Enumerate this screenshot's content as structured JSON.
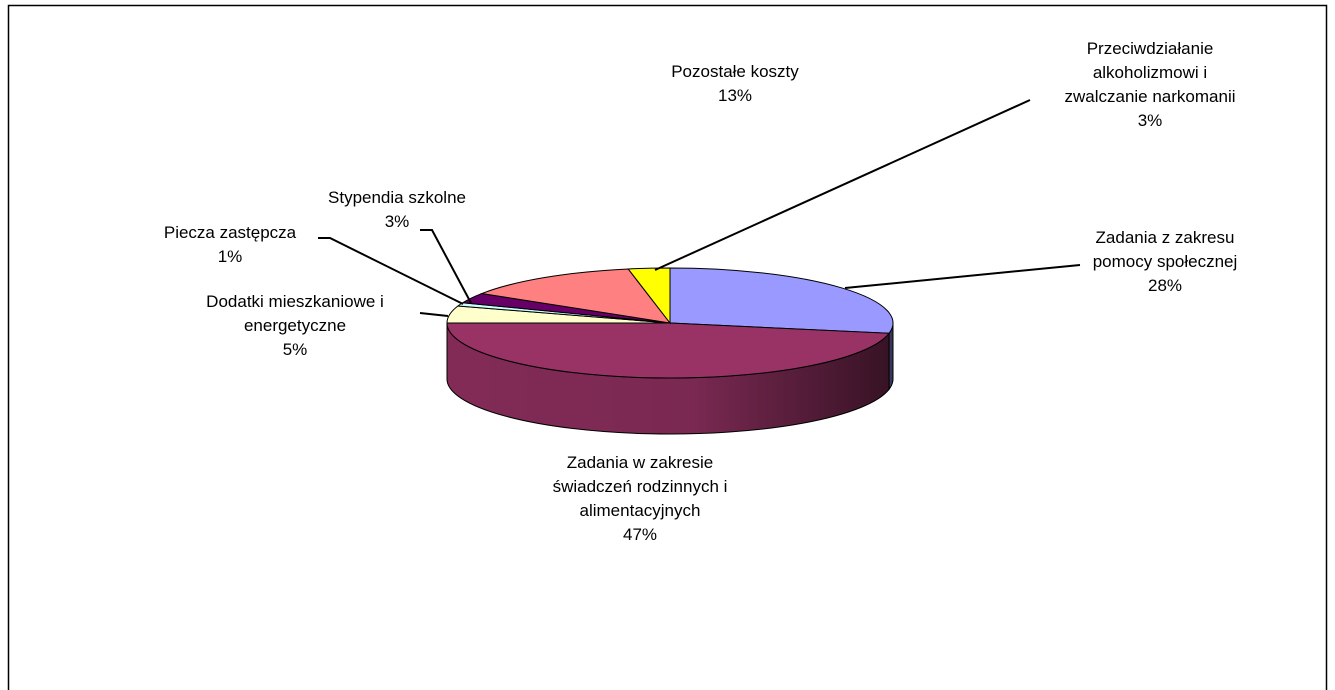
{
  "chart_data": {
    "type": "pie",
    "categories": [
      "Zadania z zakresu pomocy społecznej",
      "Zadania w zakresie świadczeń rodzinnych i alimentacyjnych",
      "Dodatki mieszkaniowe i energetyczne",
      "Piecza zastępcza",
      "Stypendia szkolne",
      "Pozostałe koszty",
      "Przeciwdziałanie alkoholizmowi i zwalczanie narkomanii"
    ],
    "values": [
      28,
      47,
      5,
      1,
      3,
      13,
      3
    ],
    "value_labels": [
      "28%",
      "47%",
      "5%",
      "1%",
      "3%",
      "13%",
      "3%"
    ],
    "colors": [
      "#9999ff",
      "#993366",
      "#ffffcc",
      "#ccffff",
      "#660066",
      "#ff8080",
      "#ffff00"
    ]
  }
}
